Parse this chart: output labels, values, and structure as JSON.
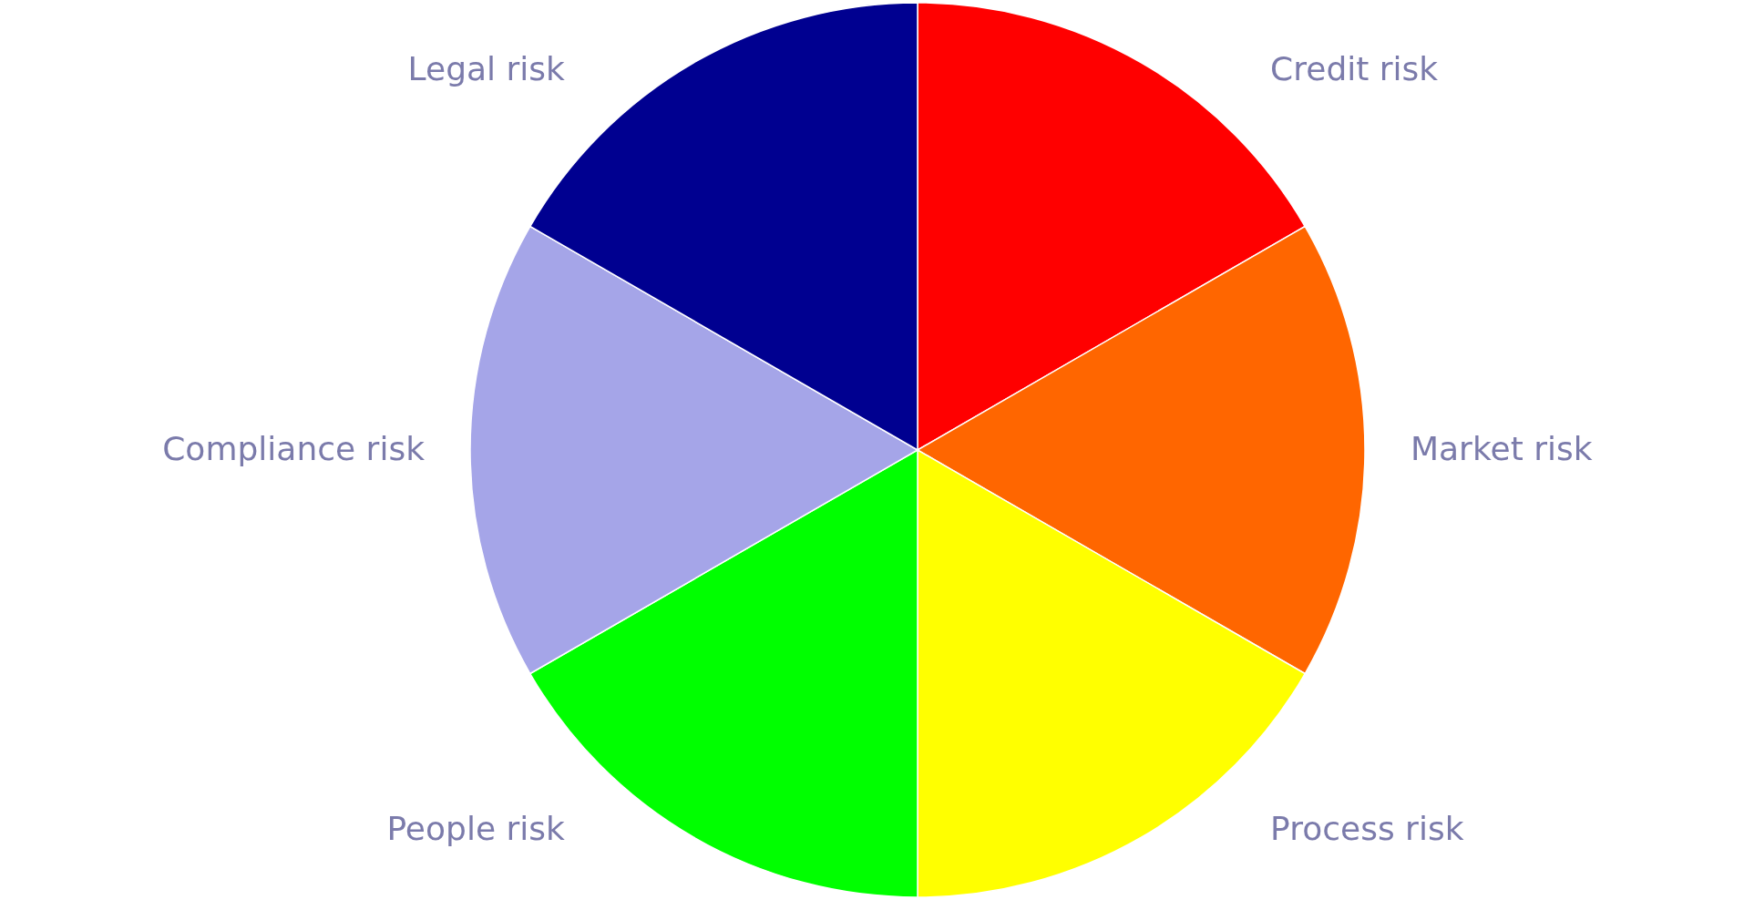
{
  "chart_data": {
    "type": "pie",
    "categories": [
      "Credit risk",
      "Market risk",
      "Process risk",
      "People risk",
      "Compliance risk",
      "Legal risk"
    ],
    "values": [
      16.67,
      16.67,
      16.67,
      16.67,
      16.67,
      16.67
    ],
    "colors": [
      "#ff0000",
      "#ff6600",
      "#ffff00",
      "#00ff00",
      "#a5a5e8",
      "#000090"
    ]
  }
}
